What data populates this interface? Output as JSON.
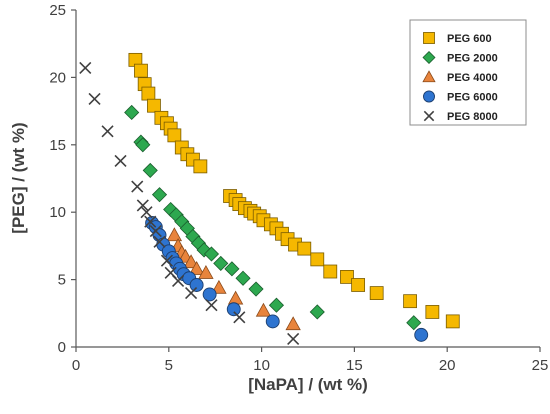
{
  "chart_data": {
    "type": "scatter",
    "xlabel": "[NaPA] / (wt %)",
    "ylabel": "[PEG] / (wt %)",
    "xlim": [
      0,
      25
    ],
    "ylim": [
      0,
      25
    ],
    "xticks": [
      "0",
      "5",
      "10",
      "15",
      "20",
      "25"
    ],
    "yticks": [
      "0",
      "5",
      "10",
      "15",
      "20",
      "25"
    ],
    "grid": false,
    "legend_position": "top-right",
    "series": [
      {
        "name": "PEG 600",
        "marker": "square",
        "color": "#F5B800",
        "points": [
          [
            3.2,
            21.3
          ],
          [
            3.5,
            20.5
          ],
          [
            3.7,
            19.5
          ],
          [
            3.9,
            18.8
          ],
          [
            4.2,
            17.9
          ],
          [
            4.6,
            17.0
          ],
          [
            4.9,
            16.6
          ],
          [
            5.1,
            16.2
          ],
          [
            5.3,
            15.7
          ],
          [
            5.7,
            14.8
          ],
          [
            6.0,
            14.3
          ],
          [
            6.3,
            13.9
          ],
          [
            6.7,
            13.4
          ],
          [
            8.3,
            11.2
          ],
          [
            8.6,
            10.9
          ],
          [
            8.8,
            10.6
          ],
          [
            9.1,
            10.3
          ],
          [
            9.4,
            10.1
          ],
          [
            9.6,
            9.9
          ],
          [
            9.9,
            9.7
          ],
          [
            10.1,
            9.4
          ],
          [
            10.5,
            9.1
          ],
          [
            10.8,
            8.8
          ],
          [
            11.1,
            8.4
          ],
          [
            11.4,
            8.0
          ],
          [
            11.8,
            7.6
          ],
          [
            12.3,
            7.3
          ],
          [
            13.0,
            6.5
          ],
          [
            13.7,
            5.6
          ],
          [
            14.6,
            5.2
          ],
          [
            15.2,
            4.6
          ],
          [
            16.2,
            4.0
          ],
          [
            18.0,
            3.4
          ],
          [
            19.2,
            2.6
          ],
          [
            20.3,
            1.9
          ]
        ]
      },
      {
        "name": "PEG 2000",
        "marker": "diamond",
        "color": "#2DA84F",
        "points": [
          [
            3.0,
            17.4
          ],
          [
            3.5,
            15.2
          ],
          [
            3.6,
            15.0
          ],
          [
            4.0,
            13.1
          ],
          [
            4.5,
            11.3
          ],
          [
            5.1,
            10.2
          ],
          [
            5.4,
            9.8
          ],
          [
            5.7,
            9.3
          ],
          [
            6.0,
            8.8
          ],
          [
            6.3,
            8.2
          ],
          [
            6.6,
            7.7
          ],
          [
            6.9,
            7.2
          ],
          [
            7.3,
            6.9
          ],
          [
            7.8,
            6.2
          ],
          [
            8.4,
            5.8
          ],
          [
            9.0,
            5.1
          ],
          [
            9.7,
            4.3
          ],
          [
            10.8,
            3.1
          ],
          [
            13.0,
            2.6
          ],
          [
            18.2,
            1.8
          ]
        ]
      },
      {
        "name": "PEG 4000",
        "marker": "triangle",
        "color": "#E8843C",
        "points": [
          [
            5.3,
            8.3
          ],
          [
            5.5,
            7.5
          ],
          [
            5.7,
            7.0
          ],
          [
            5.9,
            6.7
          ],
          [
            6.2,
            6.3
          ],
          [
            6.5,
            5.8
          ],
          [
            7.0,
            5.5
          ],
          [
            7.7,
            4.4
          ],
          [
            8.6,
            3.6
          ],
          [
            10.1,
            2.7
          ],
          [
            11.7,
            1.7
          ]
        ]
      },
      {
        "name": "PEG 6000",
        "marker": "circle",
        "color": "#2E74D0",
        "points": [
          [
            4.1,
            9.2
          ],
          [
            4.3,
            8.9
          ],
          [
            4.5,
            8.3
          ],
          [
            4.7,
            7.6
          ],
          [
            5.0,
            7.1
          ],
          [
            5.2,
            6.6
          ],
          [
            5.4,
            6.2
          ],
          [
            5.6,
            5.8
          ],
          [
            5.8,
            5.4
          ],
          [
            6.1,
            5.1
          ],
          [
            6.5,
            4.6
          ],
          [
            7.2,
            3.9
          ],
          [
            8.5,
            2.8
          ],
          [
            10.6,
            1.9
          ],
          [
            18.6,
            0.9
          ]
        ]
      },
      {
        "name": "PEG 8000",
        "marker": "cross",
        "color": "#404040",
        "points": [
          [
            0.5,
            20.7
          ],
          [
            1.0,
            18.4
          ],
          [
            1.7,
            16.0
          ],
          [
            2.4,
            13.8
          ],
          [
            3.3,
            11.9
          ],
          [
            3.6,
            10.5
          ],
          [
            3.8,
            10.0
          ],
          [
            4.0,
            9.3
          ],
          [
            4.3,
            8.6
          ],
          [
            4.5,
            7.8
          ],
          [
            4.9,
            6.4
          ],
          [
            5.1,
            5.5
          ],
          [
            5.5,
            4.9
          ],
          [
            6.2,
            4.0
          ],
          [
            7.3,
            3.1
          ],
          [
            8.8,
            2.2
          ],
          [
            11.7,
            0.6
          ]
        ]
      }
    ]
  }
}
